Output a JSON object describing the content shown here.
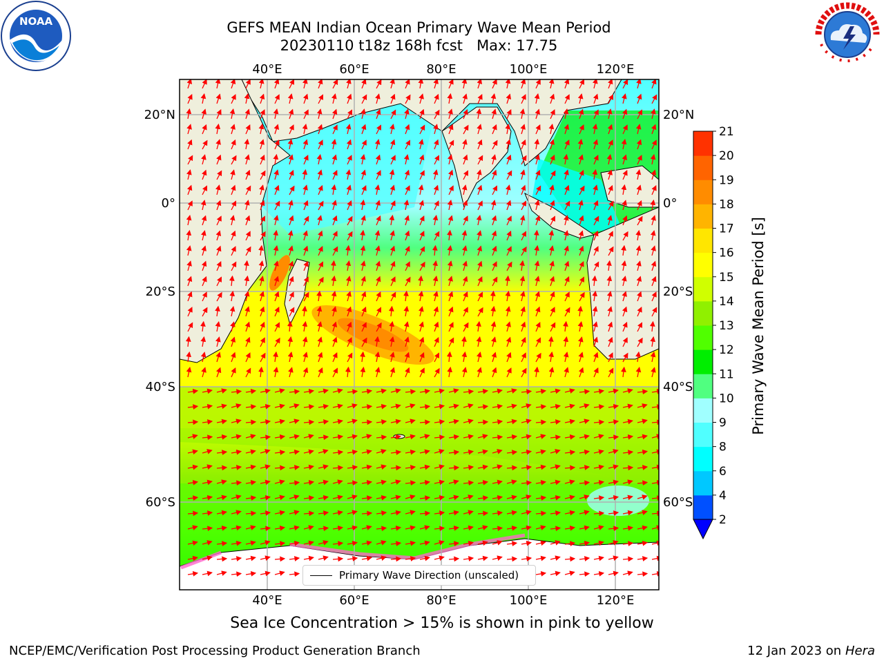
{
  "title": {
    "line1": "GEFS MEAN Indian Ocean Primary Wave Mean Period",
    "line2": "20230110 t18z 168h fcst   Max: 17.75"
  },
  "logos": {
    "left": {
      "text": "NOAA",
      "ring_text": "NATIONAL OCEANIC AND ATMOSPHERIC ADMINISTRATION · U.S. DEPARTMENT OF COMMERCE",
      "icon": "noaa-logo"
    },
    "right": {
      "ring_text": "NATIONAL WEATHER SERVICE",
      "icon": "nws-logo"
    }
  },
  "map": {
    "lon_labels": [
      "40°E",
      "60°E",
      "80°E",
      "100°E",
      "120°E"
    ],
    "lat_labels": [
      "20°N",
      "0°",
      "20°S",
      "40°S",
      "60°S"
    ],
    "extent": {
      "lon_min": 20,
      "lon_max": 130,
      "lat_min": -72,
      "lat_max": 28
    },
    "legend_label": "Primary Wave Direction (unscaled)",
    "arrow_color": "#ff0000",
    "land_color": "#efefdc",
    "grid_color": "#b0b0b0"
  },
  "colorbar": {
    "title": "Primary Wave Mean Period [s]",
    "tick_labels": [
      "2",
      "4",
      "6",
      "8",
      "9",
      "10",
      "11",
      "12",
      "13",
      "14",
      "15",
      "16",
      "17",
      "18",
      "19",
      "20",
      "21"
    ],
    "colors": [
      "#0050ff",
      "#00c8ff",
      "#00ffff",
      "#50ffff",
      "#a0ffff",
      "#50ff80",
      "#00ee00",
      "#50ff00",
      "#90f000",
      "#d0ff00",
      "#ffff00",
      "#ffe600",
      "#ffb400",
      "#ff8c00",
      "#ff6400",
      "#ff3200",
      "#ff0000"
    ],
    "under_color": "#0000ff"
  },
  "note": "Sea Ice Concentration > 15% is shown in pink to yellow",
  "footer": {
    "left": "NCEP/EMC/Verification Post Processing Product Generation Branch",
    "right_date": "12 Jan 2023 on ",
    "right_machine": "Hera"
  }
}
